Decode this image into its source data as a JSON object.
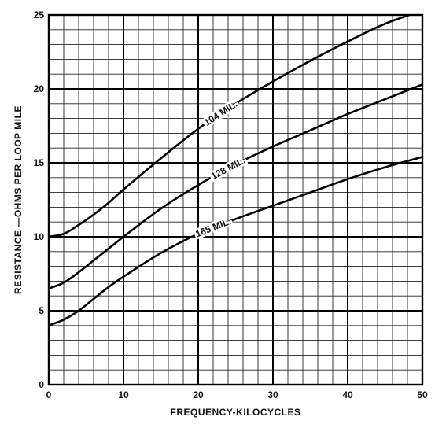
{
  "chart_data": {
    "type": "line",
    "title": "",
    "xlabel": "FREQUENCY-KILOCYCLES",
    "ylabel": "RESISTANCE —OHMS PER LOOP MILE",
    "xlim": [
      0,
      50
    ],
    "ylim": [
      0,
      25
    ],
    "x_ticks": [
      "0",
      "10",
      "20",
      "30",
      "40",
      "50"
    ],
    "y_ticks": [
      "0",
      "5",
      "10",
      "15",
      "20",
      "25"
    ],
    "major_grid_x_step": 10,
    "major_grid_y_step": 5,
    "minor_grid_x_step": 2,
    "minor_grid_y_step": 1,
    "grid": true,
    "legend": "none",
    "series": [
      {
        "name": "104 MIL.",
        "x": [
          0,
          2,
          4,
          6,
          8,
          10,
          15,
          20,
          25,
          30,
          35,
          40,
          45,
          50
        ],
        "y": [
          10.0,
          10.2,
          10.8,
          11.5,
          12.3,
          13.2,
          15.3,
          17.3,
          19.0,
          20.5,
          21.9,
          23.2,
          24.4,
          25.3
        ],
        "label_x": 23
      },
      {
        "name": "128 MIL.",
        "x": [
          0,
          2,
          4,
          6,
          8,
          10,
          15,
          20,
          25,
          30,
          35,
          40,
          45,
          50
        ],
        "y": [
          6.5,
          6.9,
          7.6,
          8.4,
          9.2,
          10.0,
          11.9,
          13.5,
          14.9,
          16.1,
          17.2,
          18.3,
          19.3,
          20.3
        ],
        "label_x": 24
      },
      {
        "name": "165 MIL.",
        "x": [
          0,
          2,
          4,
          6,
          8,
          10,
          15,
          20,
          25,
          30,
          35,
          40,
          45,
          50
        ],
        "y": [
          4.0,
          4.4,
          5.0,
          5.8,
          6.6,
          7.3,
          8.9,
          10.2,
          11.2,
          12.1,
          13.0,
          13.9,
          14.7,
          15.4
        ],
        "label_x": 22
      }
    ]
  }
}
